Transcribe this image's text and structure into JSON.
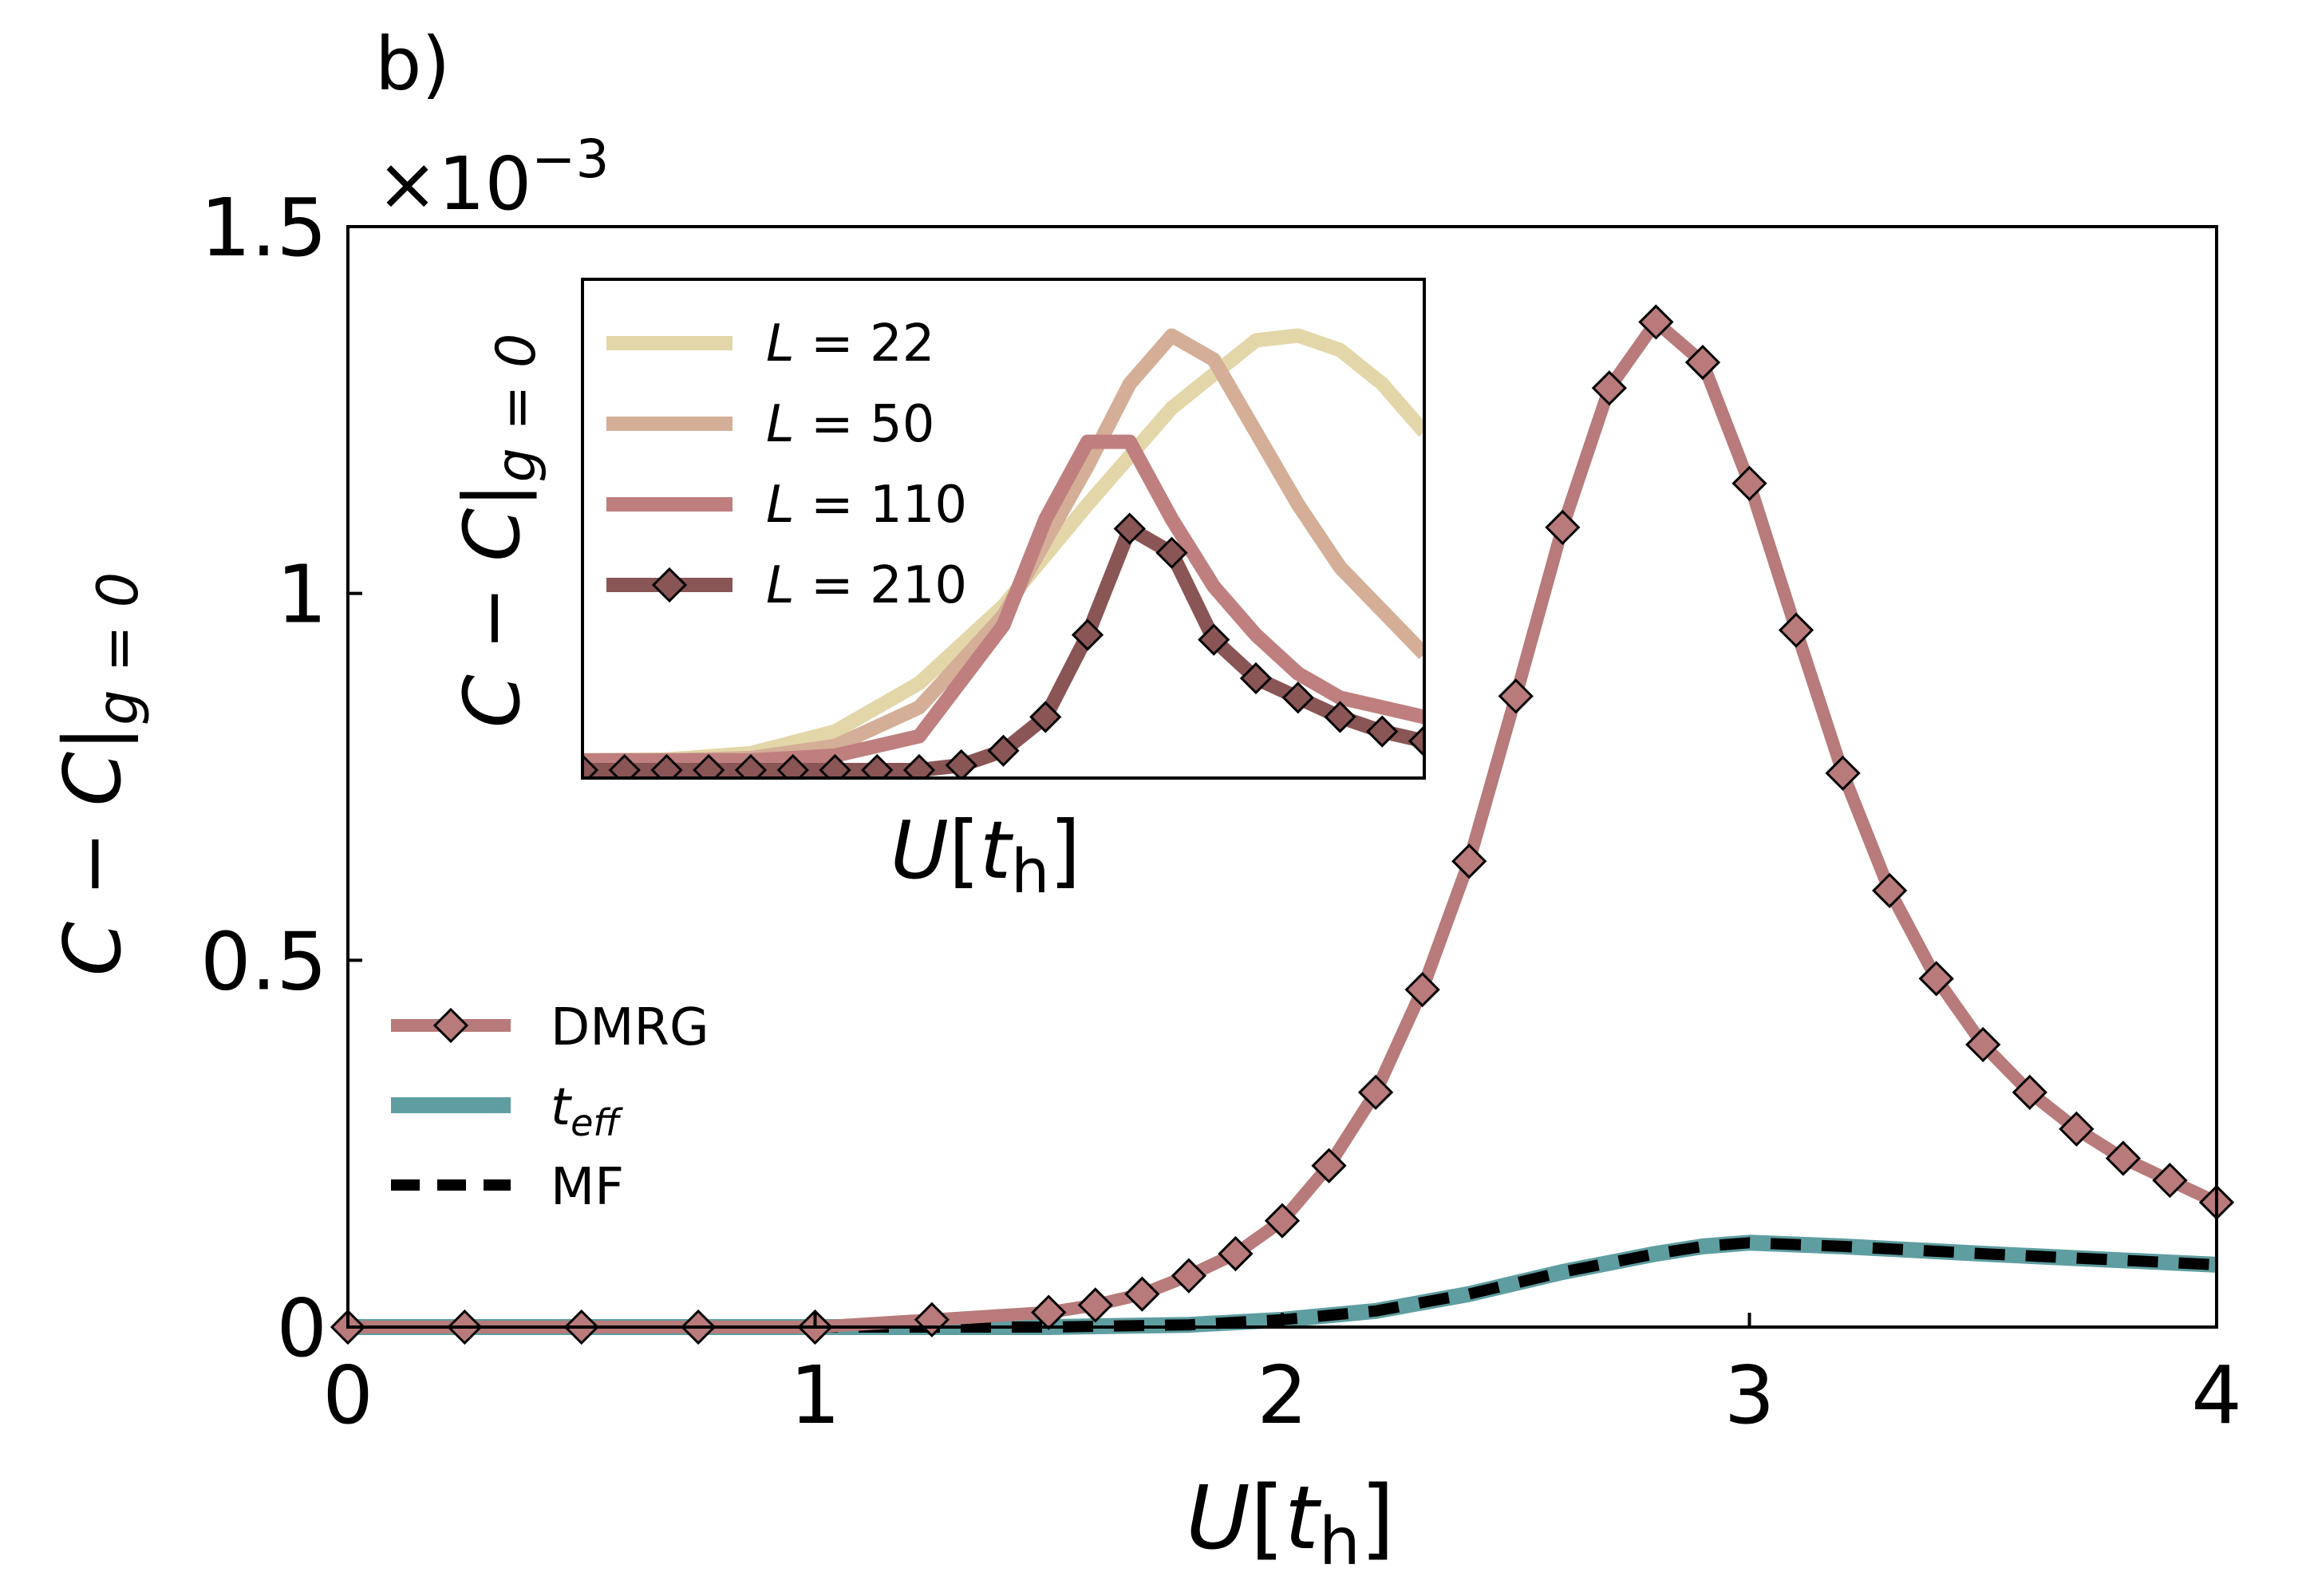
{
  "chart_data": [
    {
      "type": "line",
      "panel_label": "b)",
      "scale_prefix": "×10",
      "scale_exponent": "−3",
      "xlim": [
        0,
        4
      ],
      "ylim": [
        0,
        1.5
      ],
      "x_ticks": [
        "0",
        "1",
        "2",
        "3",
        "4"
      ],
      "y_ticks": [
        "0",
        "0.5",
        "1",
        "1.5"
      ],
      "xlabel": {
        "var": "U",
        "open": "[",
        "sym": "t",
        "sub": "h",
        "close": "]"
      },
      "ylabel": {
        "a": "C",
        "op": " − ",
        "b": "C",
        "bar": "|",
        "sub": "g = 0"
      },
      "legend_position": "center-left",
      "series": [
        {
          "name": "DMRG",
          "color": "#B87A7A",
          "style": "solid-with-diamond-markers",
          "x": [
            0,
            0.25,
            0.5,
            0.75,
            1.0,
            1.25,
            1.5,
            1.6,
            1.7,
            1.8,
            1.9,
            2.0,
            2.1,
            2.2,
            2.3,
            2.4,
            2.5,
            2.6,
            2.7,
            2.8,
            2.9,
            3.0,
            3.1,
            3.2,
            3.3,
            3.4,
            3.5,
            3.6,
            3.7,
            3.8,
            3.9,
            4.0
          ],
          "y": [
            0.0,
            0.0,
            0.0,
            0.0,
            0.0,
            0.01,
            0.02,
            0.03,
            0.045,
            0.07,
            0.1,
            0.145,
            0.22,
            0.32,
            0.46,
            0.635,
            0.86,
            1.09,
            1.28,
            1.37,
            1.315,
            1.15,
            0.95,
            0.755,
            0.595,
            0.475,
            0.385,
            0.32,
            0.27,
            0.23,
            0.2,
            0.17
          ]
        },
        {
          "name": "t",
          "name_sub": "eff",
          "color": "#5F9EA0",
          "style": "solid",
          "x": [
            0,
            0.5,
            1.0,
            1.5,
            1.8,
            2.0,
            2.2,
            2.4,
            2.6,
            2.8,
            2.9,
            3.0,
            3.2,
            3.5,
            4.0
          ],
          "y": [
            0.0,
            0.0,
            0.0,
            0.0,
            0.003,
            0.01,
            0.022,
            0.045,
            0.075,
            0.1,
            0.11,
            0.115,
            0.11,
            0.1,
            0.085
          ]
        },
        {
          "name": "MF",
          "color": "#000000",
          "style": "dashed",
          "x": [
            0,
            0.5,
            1.0,
            1.5,
            1.8,
            2.0,
            2.2,
            2.4,
            2.6,
            2.8,
            2.9,
            3.0,
            3.2,
            3.5,
            4.0
          ],
          "y": [
            0.0,
            0.0,
            0.0,
            0.0,
            0.003,
            0.01,
            0.022,
            0.045,
            0.075,
            0.1,
            0.11,
            0.115,
            0.11,
            0.1,
            0.085
          ]
        }
      ]
    },
    {
      "type": "line",
      "role": "inset",
      "xlabel": {
        "var": "U",
        "open": "[",
        "sym": "t",
        "sub": "h",
        "close": "]"
      },
      "ylabel": {
        "a": "C",
        "op": " − ",
        "b": "C",
        "bar": "|",
        "sub": "g = 0"
      },
      "legend_position": "top-left",
      "ticks_shown": false,
      "xlim": [
        0,
        1
      ],
      "ylim": [
        0,
        1
      ],
      "series": [
        {
          "name": "L = 22",
          "color": "#E3D7A9",
          "style": "solid",
          "x": [
            0,
            0.1,
            0.2,
            0.3,
            0.4,
            0.5,
            0.6,
            0.7,
            0.8,
            0.85,
            0.9,
            0.95,
            1.0
          ],
          "y": [
            0.02,
            0.022,
            0.035,
            0.08,
            0.18,
            0.34,
            0.55,
            0.75,
            0.89,
            0.9,
            0.87,
            0.8,
            0.7
          ]
        },
        {
          "name": "L = 50",
          "color": "#D4AE97",
          "style": "solid",
          "x": [
            0,
            0.1,
            0.2,
            0.3,
            0.4,
            0.5,
            0.6,
            0.65,
            0.7,
            0.75,
            0.8,
            0.85,
            0.9,
            0.95,
            1.0
          ],
          "y": [
            0.02,
            0.02,
            0.025,
            0.05,
            0.13,
            0.32,
            0.63,
            0.8,
            0.9,
            0.85,
            0.7,
            0.55,
            0.42,
            0.33,
            0.24
          ]
        },
        {
          "name": "L = 110",
          "color": "#BF7F7F",
          "style": "solid",
          "x": [
            0,
            0.1,
            0.2,
            0.3,
            0.4,
            0.5,
            0.55,
            0.6,
            0.65,
            0.7,
            0.75,
            0.8,
            0.85,
            0.9,
            0.95,
            1.0
          ],
          "y": [
            0.02,
            0.02,
            0.02,
            0.03,
            0.07,
            0.3,
            0.52,
            0.68,
            0.68,
            0.52,
            0.38,
            0.28,
            0.2,
            0.15,
            0.13,
            0.11
          ]
        },
        {
          "name": "L = 210",
          "color": "#8A5555",
          "style": "solid-with-diamond-markers",
          "x": [
            0,
            0.05,
            0.1,
            0.15,
            0.2,
            0.25,
            0.3,
            0.35,
            0.4,
            0.45,
            0.5,
            0.55,
            0.6,
            0.65,
            0.7,
            0.75,
            0.8,
            0.85,
            0.9,
            0.95,
            1.0
          ],
          "y": [
            0.0,
            0.0,
            0.0,
            0.0,
            0.0,
            0.0,
            0.0,
            0.0,
            0.0,
            0.01,
            0.04,
            0.11,
            0.28,
            0.5,
            0.45,
            0.27,
            0.19,
            0.15,
            0.11,
            0.08,
            0.06
          ]
        }
      ]
    }
  ]
}
